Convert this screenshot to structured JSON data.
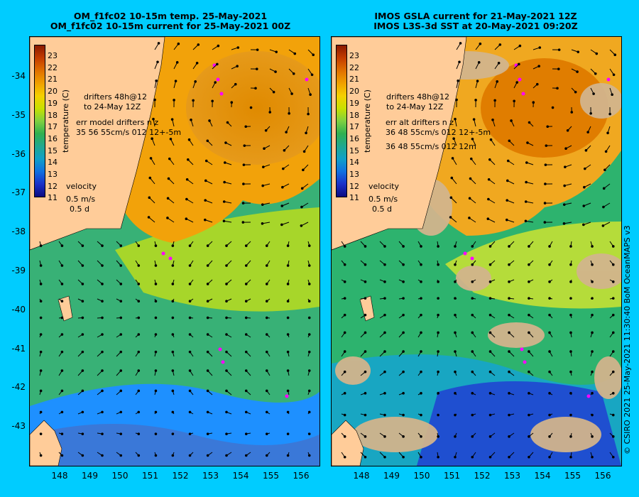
{
  "left_panel": {
    "title_line1": "OM_f1fc02 10-15m temp. 25-May-2021",
    "title_line2": "OM_f1fc02 10-15m current for 25-May-2021 00Z",
    "legend": {
      "drifters_line1": "drifters 48h@12",
      "drifters_line2": "to 24-May 12Z",
      "err_line1": "err model drifters n  z",
      "err_line2": "35 56 55cm/s 012 12+-5m"
    },
    "velocity": {
      "label": "velocity",
      "speed": "0.5 m/s",
      "time": "0.5 d"
    }
  },
  "right_panel": {
    "title_line1": "IMOS GSLA current for 21-May-2021 12Z",
    "title_line2": "IMOS L3S-3d SST at 20-May-2021 09:20Z",
    "legend": {
      "drifters_line1": "drifters 48h@12",
      "drifters_line2": "to 24-May 12Z",
      "err_line1": "err alt drifters n  z",
      "err_line2": "36 48 55cm/s 012 12+-5m",
      "err_line3": "36 48 55cm/s 012 12m"
    },
    "velocity": {
      "label": "velocity",
      "speed": "0.5 m/s",
      "time": "0.5 d"
    }
  },
  "colorbar": {
    "title": "temperature (C)",
    "ticks": [
      "23",
      "22",
      "21",
      "20",
      "19",
      "18",
      "17",
      "16",
      "15",
      "14",
      "13",
      "12",
      "11"
    ]
  },
  "axes": {
    "lat_ticks": [
      "-34",
      "-35",
      "-36",
      "-37",
      "-38",
      "-39",
      "-40",
      "-41",
      "-42",
      "-43"
    ],
    "lon_ticks": [
      "148",
      "149",
      "150",
      "151",
      "152",
      "153",
      "154",
      "155",
      "156"
    ]
  },
  "credit": "© CSIRO 2021   25-May-2021 11:30:40 BoM OceanMAPS v3",
  "colors": {
    "background": "#00ccff",
    "land": "#ffcc99",
    "drifter": "#ff00ff"
  }
}
